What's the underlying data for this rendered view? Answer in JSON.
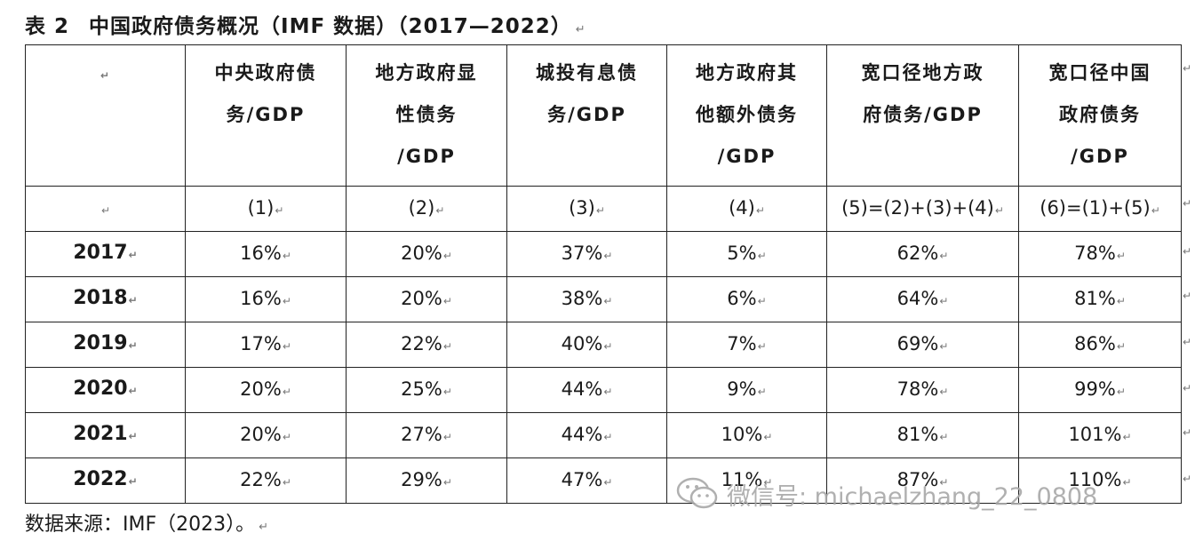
{
  "caption": {
    "number": "表 2",
    "title": "中国政府债务概况（IMF 数据）（2017—2022）",
    "mark": "↵"
  },
  "header": [
    "",
    "中央政府债务/GDP",
    "地方政府显性债务/GDP",
    "城投有息债务/GDP",
    "地方政府其他额外债务/GDP",
    "宽口径地方政府债务/GDP",
    "宽口径中国政府债务/GDP"
  ],
  "header_lines": [
    [
      ""
    ],
    [
      "中央政府债",
      "务/GDP"
    ],
    [
      "地方政府显",
      "性债务",
      "/GDP"
    ],
    [
      "城投有息债",
      "务/GDP"
    ],
    [
      "地方政府其",
      "他额外债务",
      "/GDP"
    ],
    [
      "宽口径地方政",
      "府债务/GDP"
    ],
    [
      "宽口径中国",
      "政府债务",
      "/GDP"
    ]
  ],
  "index_row": [
    "",
    "(1)",
    "(2)",
    "(3)",
    "(4)",
    "(5)=(2)+(3)+(4)",
    "(6)=(1)+(5)"
  ],
  "rows": [
    {
      "year": "2017",
      "values": [
        "16%",
        "20%",
        "37%",
        "5%",
        "62%",
        "78%"
      ]
    },
    {
      "year": "2018",
      "values": [
        "16%",
        "20%",
        "38%",
        "6%",
        "64%",
        "81%"
      ]
    },
    {
      "year": "2019",
      "values": [
        "17%",
        "22%",
        "40%",
        "7%",
        "69%",
        "86%"
      ]
    },
    {
      "year": "2020",
      "values": [
        "20%",
        "25%",
        "44%",
        "9%",
        "78%",
        "99%"
      ]
    },
    {
      "year": "2021",
      "values": [
        "20%",
        "27%",
        "44%",
        "10%",
        "81%",
        "101%"
      ]
    },
    {
      "year": "2022",
      "values": [
        "22%",
        "29%",
        "47%",
        "11%",
        "87%",
        "110%"
      ]
    }
  ],
  "source": "数据来源：IMF（2023）。",
  "watermark": "微信号: michaelzhang_22_0808",
  "paragraph_mark": "↵"
}
